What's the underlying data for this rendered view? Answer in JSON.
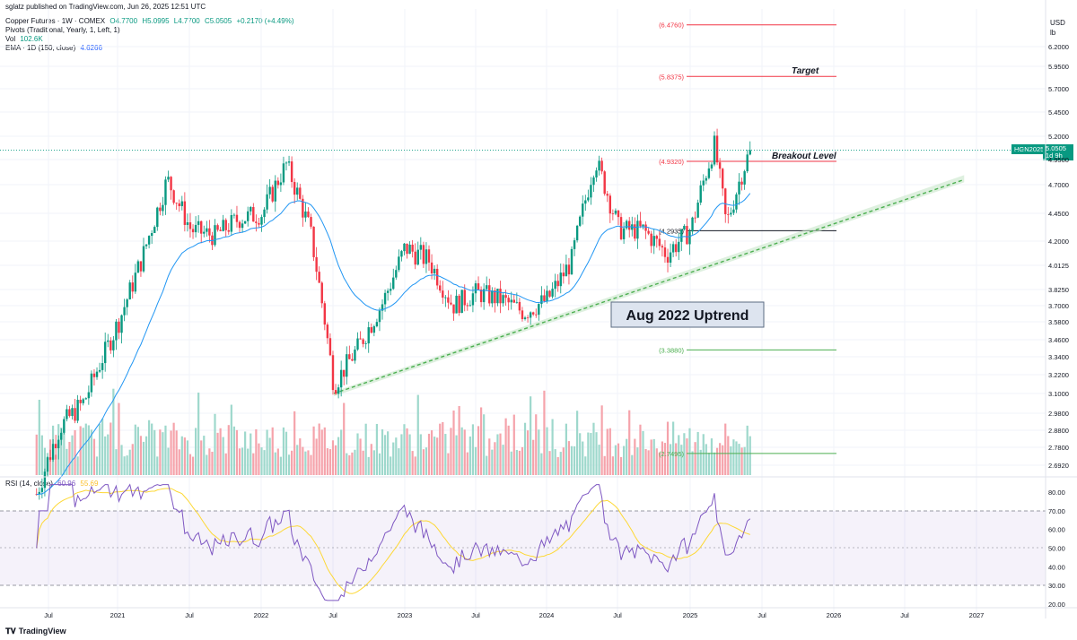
{
  "publisher": "sglatz published on TradingView.com, Jun 26, 2025 12:51 UTC",
  "legend": {
    "symbol": "Copper Futures · 1W · COMEX",
    "o": "O4.7700",
    "h": "H5.0995",
    "l": "L4.7700",
    "c": "C5.0505",
    "chg": "+0.2170 (+4.49%)",
    "pivots": "Pivots (Traditional, Yearly, 1, Left, 1)",
    "vol_label": "Vol",
    "vol_value": "102.6K",
    "ema_label": "EMA · 1D (150, close)",
    "ema_value": "4.6266",
    "rsi_label": "RSI (14, close)",
    "rsi_value": "60.96",
    "rsi_ma": "55.69"
  },
  "currency": "USD",
  "unit": "lb",
  "symbol_tag": "HGN2025",
  "last_price": "5.0505",
  "countdown": "1d 9h",
  "annotations": {
    "target": "Target",
    "breakout": "Breakout Level",
    "uptrend": "Aug 2022 Uptrend"
  },
  "pivot_labels": [
    "(6.4760)",
    "(5.8375)",
    "(4.9320)",
    "(4.2935)",
    "(3.3880)",
    "(2.7495)"
  ],
  "brand": "TradingView",
  "colors": {
    "up": "#089981",
    "down": "#f23645",
    "ema": "#2196f3",
    "rsi": "#7e57c2",
    "rsi_ma": "#fdd835",
    "trend": "#4caf50",
    "pivot_red": "#f23645",
    "pivot_green": "#4caf50"
  },
  "chart_data": {
    "type": "candlestick",
    "timeframe": "1W",
    "price_axis_ticks": [
      6.2,
      5.95,
      5.7,
      5.45,
      5.2,
      4.95,
      4.7,
      4.45,
      4.2,
      4.0125,
      3.825,
      3.7,
      3.58,
      3.46,
      3.34,
      3.22,
      3.1,
      2.98,
      2.88,
      2.78,
      2.692
    ],
    "time_axis_labels": [
      "Jul",
      "2021",
      "Jul",
      "2022",
      "Jul",
      "2023",
      "Jul",
      "2024",
      "Jul",
      "2025",
      "Jul",
      "2026",
      "Jul",
      "2027"
    ],
    "rsi_axis_ticks": [
      80,
      70,
      60,
      50,
      40,
      30,
      20
    ],
    "pivot_levels": [
      {
        "label": "(6.4760)",
        "value": 6.476
      },
      {
        "label": "(5.8375)",
        "value": 5.8375
      },
      {
        "label": "(4.9320)",
        "value": 4.932
      },
      {
        "label": "(4.2935)",
        "value": 4.2935
      },
      {
        "label": "(3.3880)",
        "value": 3.388
      },
      {
        "label": "(2.7495)",
        "value": 2.7495
      }
    ],
    "trendline": {
      "start": {
        "date": "2022-07",
        "price": 3.1
      },
      "end": {
        "date": "2026-12",
        "price": 4.75
      }
    },
    "price_path": [
      {
        "date": "2020-06",
        "price": 2.55
      },
      {
        "date": "2020-08",
        "price": 2.9
      },
      {
        "date": "2020-10",
        "price": 3.05
      },
      {
        "date": "2021-01",
        "price": 3.6
      },
      {
        "date": "2021-03",
        "price": 4.1
      },
      {
        "date": "2021-05",
        "price": 4.75
      },
      {
        "date": "2021-07",
        "price": 4.3
      },
      {
        "date": "2021-09",
        "price": 4.25
      },
      {
        "date": "2021-11",
        "price": 4.4
      },
      {
        "date": "2022-01",
        "price": 4.45
      },
      {
        "date": "2022-03",
        "price": 4.9
      },
      {
        "date": "2022-05",
        "price": 4.3
      },
      {
        "date": "2022-07",
        "price": 3.15
      },
      {
        "date": "2022-09",
        "price": 3.4
      },
      {
        "date": "2022-11",
        "price": 3.7
      },
      {
        "date": "2023-01",
        "price": 4.15
      },
      {
        "date": "2023-03",
        "price": 4.05
      },
      {
        "date": "2023-05",
        "price": 3.7
      },
      {
        "date": "2023-07",
        "price": 3.8
      },
      {
        "date": "2023-09",
        "price": 3.75
      },
      {
        "date": "2023-11",
        "price": 3.65
      },
      {
        "date": "2024-01",
        "price": 3.75
      },
      {
        "date": "2024-03",
        "price": 4.05
      },
      {
        "date": "2024-05",
        "price": 4.95
      },
      {
        "date": "2024-07",
        "price": 4.3
      },
      {
        "date": "2024-09",
        "price": 4.3
      },
      {
        "date": "2024-11",
        "price": 4.1
      },
      {
        "date": "2025-01",
        "price": 4.3
      },
      {
        "date": "2025-03",
        "price": 5.1
      },
      {
        "date": "2025-04",
        "price": 4.35
      },
      {
        "date": "2025-06",
        "price": 5.05
      }
    ],
    "last_close": 5.0505
  }
}
